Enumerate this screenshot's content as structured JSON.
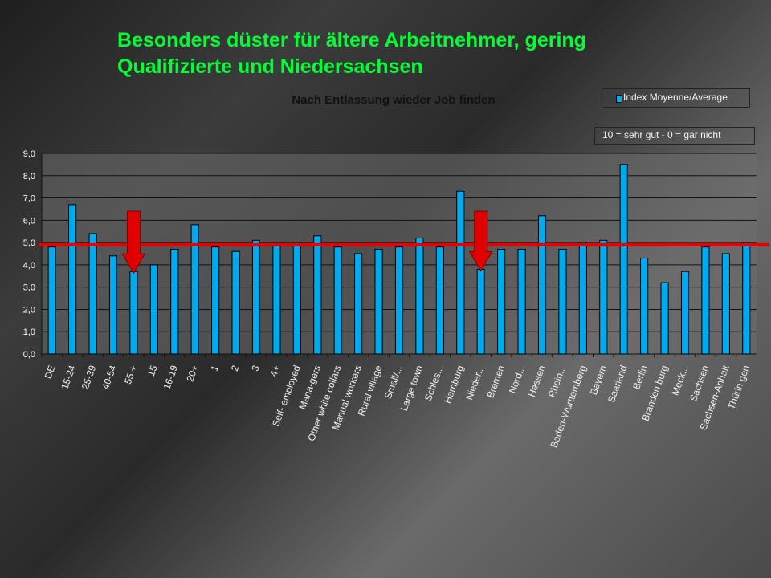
{
  "slide": {
    "title_line1": "Besonders düster für ältere Arbeitnehmer, gering",
    "title_line2": "Qualifizierte und Niedersachsen"
  },
  "legend": {
    "label": "Index Moyenne/Average"
  },
  "note": {
    "text": "10 = sehr gut - 0 = gar nicht"
  },
  "colors": {
    "bar": "#00aaee",
    "reference_line": "#e80000",
    "arrow": "#e00000",
    "title": "#00ff33"
  },
  "chart_data": {
    "type": "bar",
    "title": "Nach Entlassung wieder Job finden",
    "xlabel": "",
    "ylabel": "",
    "ylim": [
      0,
      9
    ],
    "yticks": [
      "0,0",
      "1,0",
      "2,0",
      "3,0",
      "4,0",
      "5,0",
      "6,0",
      "7,0",
      "8,0",
      "9,0"
    ],
    "grid": true,
    "legend_position": "top-right",
    "categories": [
      "DE",
      "15-24",
      "25-39",
      "40-54",
      "55 +",
      "15",
      "16-19",
      "20+",
      "1",
      "2",
      "3",
      "4+",
      "Self- employed",
      "Mana-gers",
      "Other white collars",
      "Manual workers",
      "Rural village",
      "Small/...",
      "Large town",
      "Schles...",
      "Hamburg",
      "Nieder...",
      "Bremen",
      "Nord...",
      "Hessen",
      "Rhein...",
      "Baden-Württemberg",
      "Bayern",
      "Saarland",
      "Berlin",
      "Branden burg",
      "Meck...",
      "Sachsen",
      "Sachsen-Anhalt",
      "Thürin gen"
    ],
    "series": [
      {
        "name": "Index Moyenne/Average",
        "values": [
          4.8,
          6.7,
          5.4,
          4.4,
          3.7,
          4.0,
          4.7,
          5.8,
          4.8,
          4.6,
          5.1,
          4.9,
          5.0,
          5.3,
          4.8,
          4.5,
          4.7,
          4.8,
          5.2,
          4.8,
          7.3,
          3.8,
          4.7,
          4.7,
          6.2,
          4.7,
          5.0,
          5.1,
          8.5,
          4.3,
          3.2,
          3.7,
          4.8,
          4.5,
          5.0
        ]
      }
    ],
    "reference_line_value": 4.9,
    "highlighted_categories": [
      "55 +",
      "Nieder..."
    ]
  }
}
